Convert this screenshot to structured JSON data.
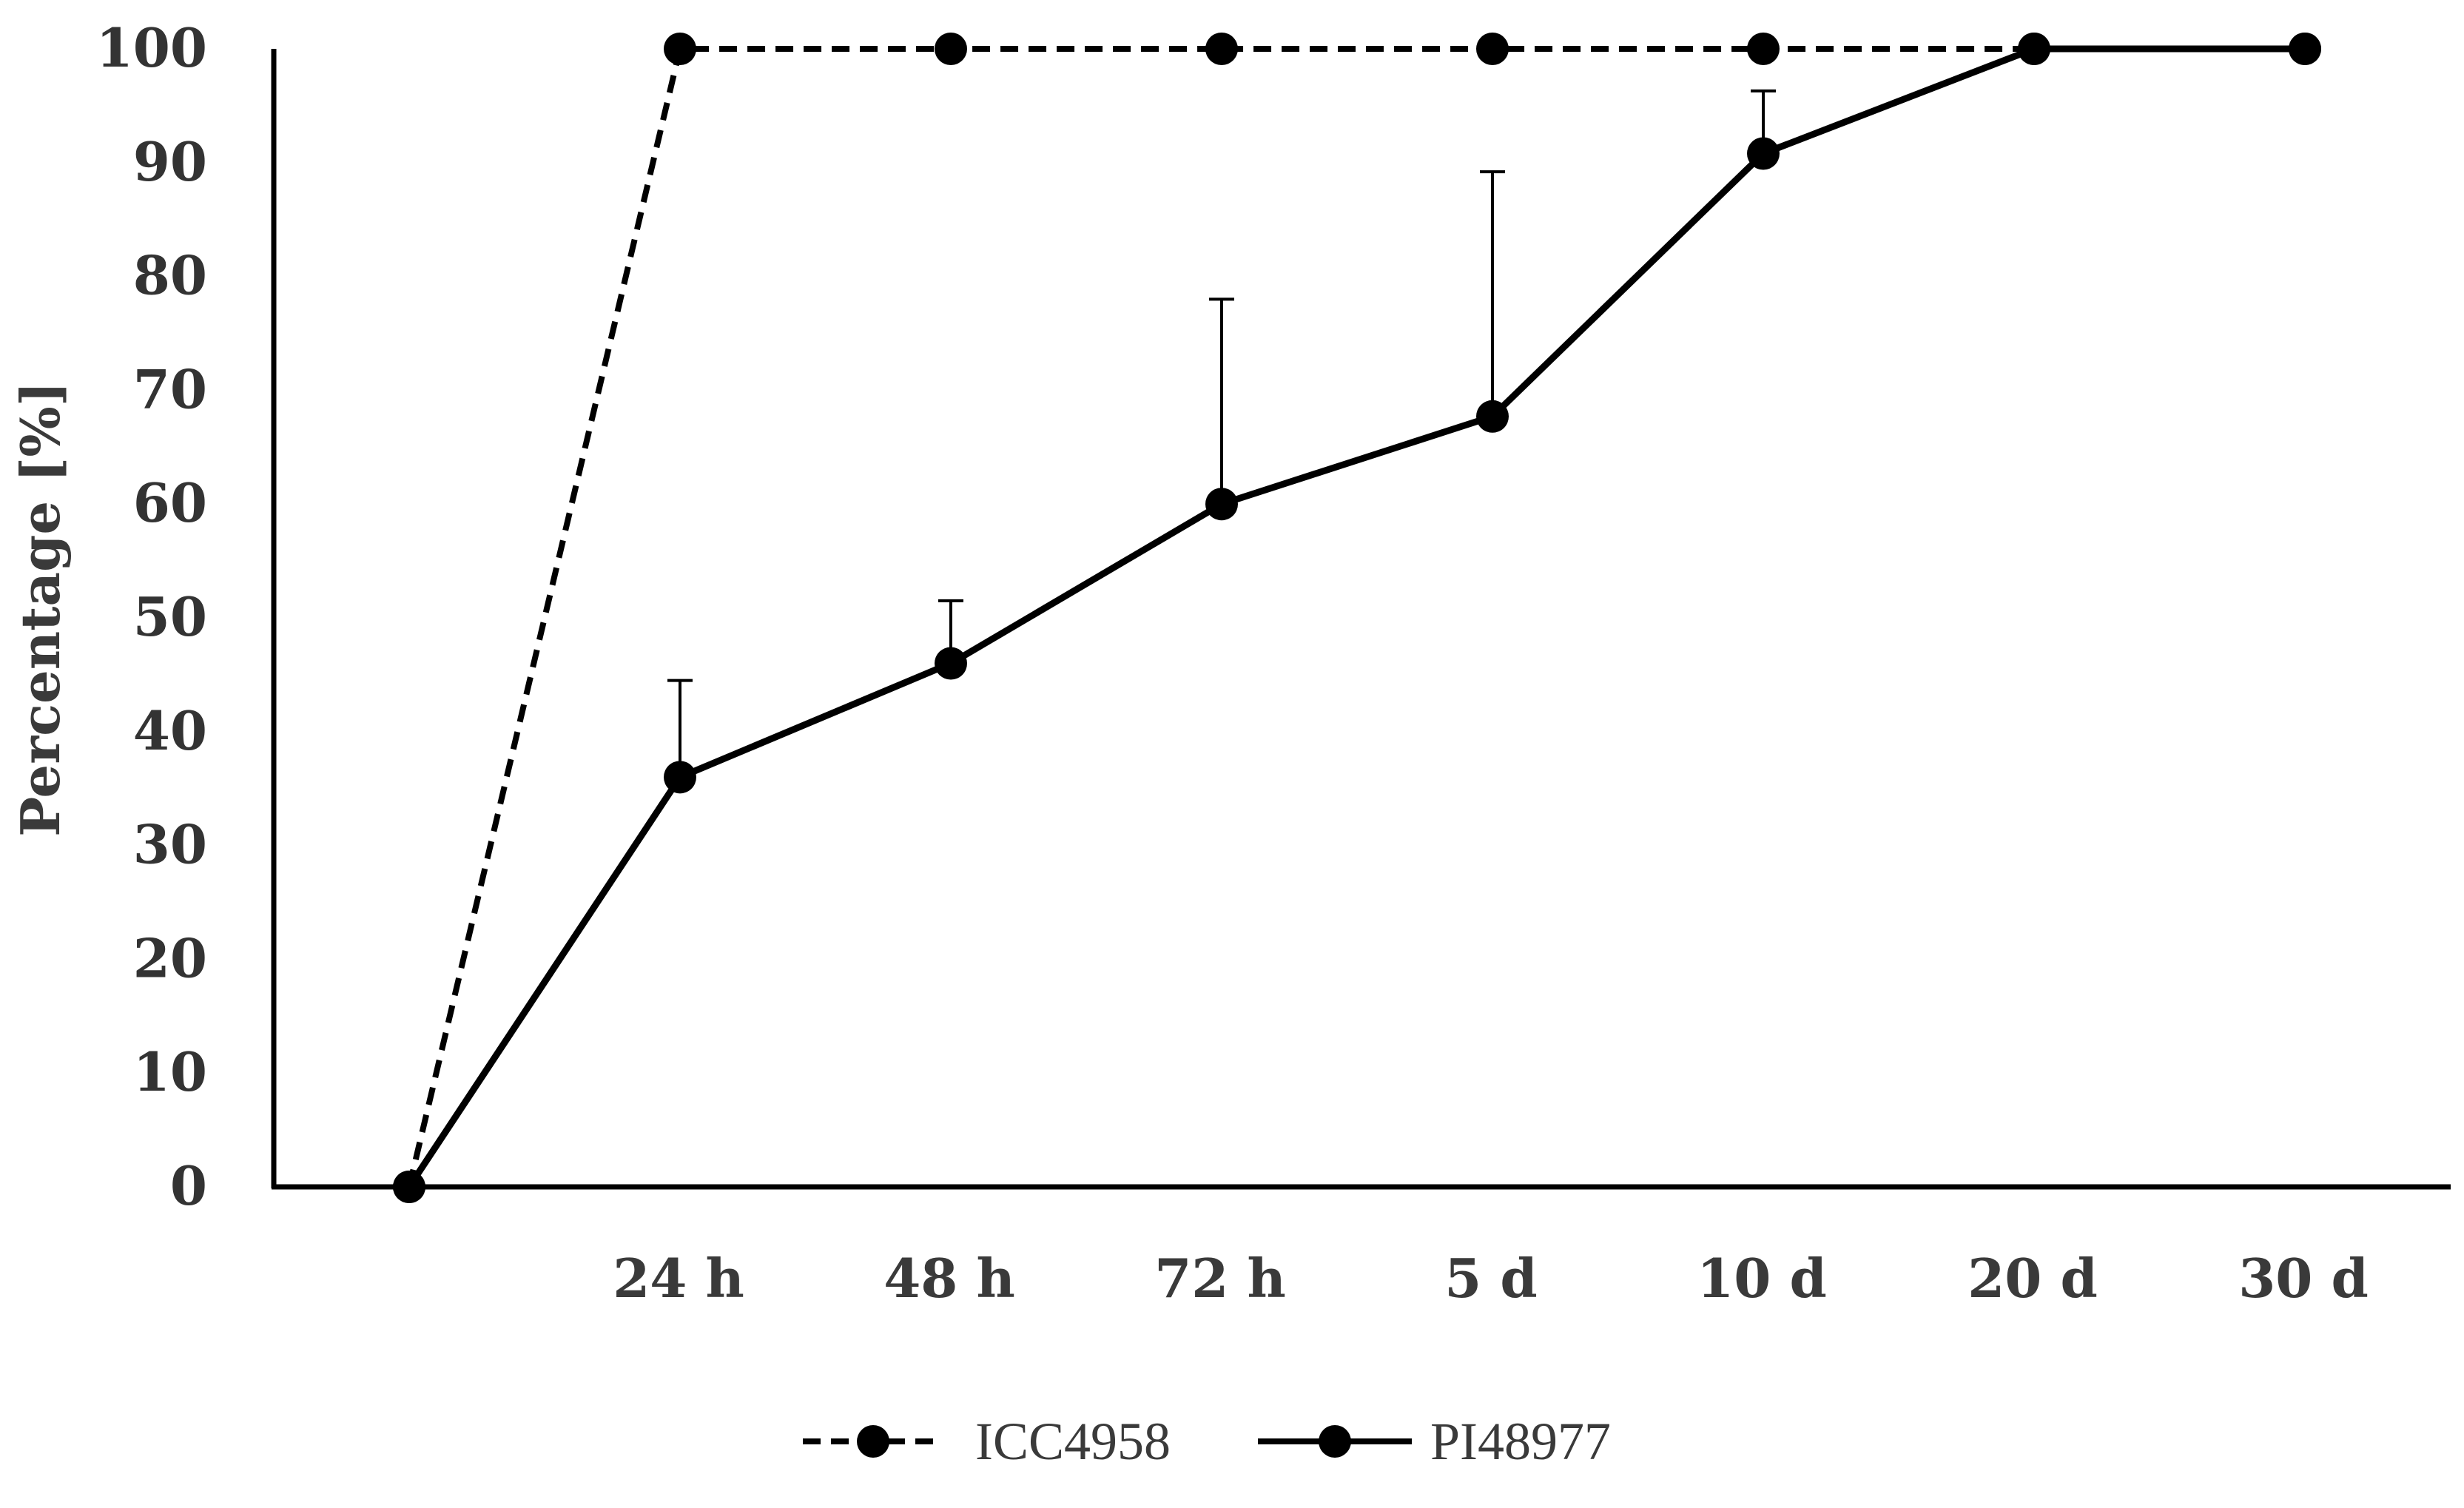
{
  "chart_data": {
    "type": "line",
    "xlabel": "",
    "ylabel": "Percentage [%]",
    "categories": [
      "",
      "24 h",
      "48 h",
      "72 h",
      "5 d",
      "10 d",
      "20 d",
      "30 d"
    ],
    "ylim": [
      0,
      100
    ],
    "yticks": [
      0,
      10,
      20,
      30,
      40,
      50,
      60,
      70,
      80,
      90,
      100
    ],
    "grid": false,
    "legend": "bottom",
    "series": [
      {
        "name": "ICC4958",
        "style": "dashed",
        "color": "#000000",
        "values": [
          0,
          100,
          100,
          100,
          100,
          100,
          100,
          100
        ]
      },
      {
        "name": "PI48977",
        "style": "solid",
        "color": "#000000",
        "values": [
          0,
          36,
          46,
          60,
          67.7,
          90.8,
          100,
          100
        ],
        "error_upper": [
          0,
          8.5,
          5.5,
          18,
          21.5,
          5.5,
          0,
          0
        ]
      }
    ]
  }
}
